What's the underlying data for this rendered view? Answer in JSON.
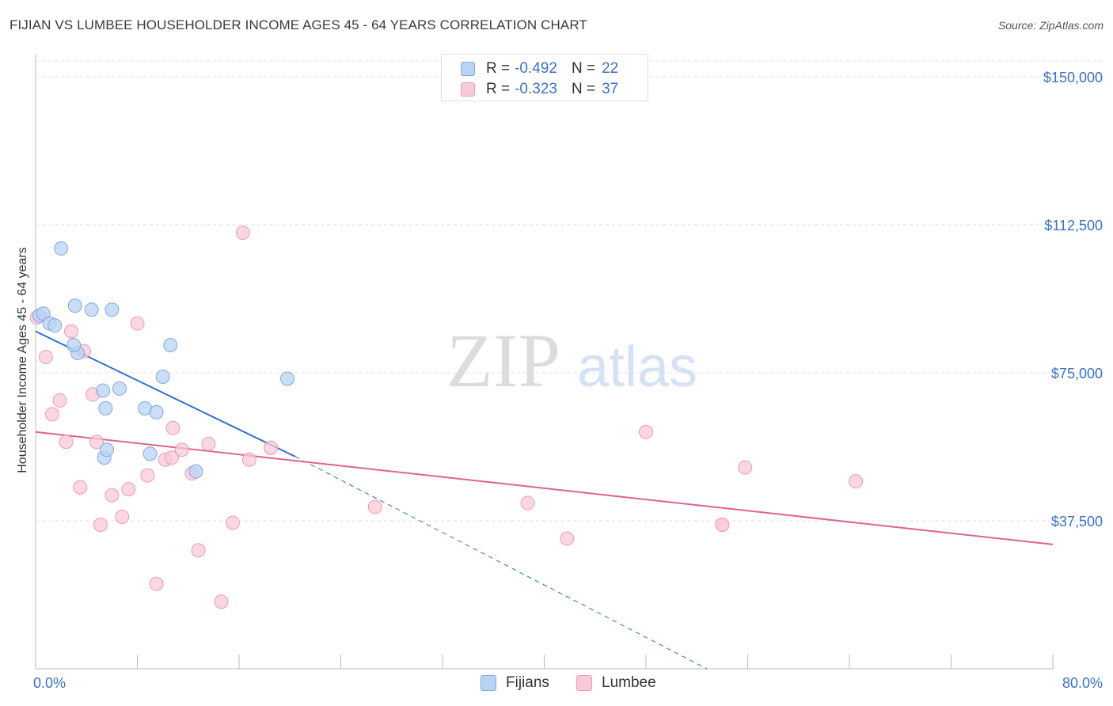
{
  "header": {
    "title": "FIJIAN VS LUMBEE HOUSEHOLDER INCOME AGES 45 - 64 YEARS CORRELATION CHART",
    "source": "Source: ZipAtlas.com"
  },
  "watermark": {
    "zip": "ZIP",
    "atlas": "atlas"
  },
  "legend_top": [
    {
      "r_label": "R =",
      "r_value": "-0.492",
      "n_label": "N =",
      "n_value": "22"
    },
    {
      "r_label": "R =",
      "r_value": "-0.323",
      "n_label": "N =",
      "n_value": "37"
    }
  ],
  "legend_bottom": {
    "fijians": "Fijians",
    "lumbee": "Lumbee"
  },
  "colors": {
    "fijians_fill": "#b9d3f3",
    "fijians_stroke": "#7ea9e0",
    "fijians_line": "#2f6fcf",
    "lumbee_fill": "#f9c9d7",
    "lumbee_stroke": "#ee9ab3",
    "lumbee_line": "#e0628d",
    "axis_text": "#3a72c8",
    "grid": "#e2e2e2"
  },
  "chart_data": {
    "type": "scatter",
    "title": "FIJIAN VS LUMBEE HOUSEHOLDER INCOME AGES 45 - 64 YEARS CORRELATION CHART",
    "xlabel": "",
    "ylabel": "Householder Income Ages 45 - 64 years",
    "xlim": [
      0,
      80
    ],
    "ylim": [
      0,
      155000
    ],
    "x_tick_labels": [
      {
        "value": 0,
        "label": "0.0%"
      },
      {
        "value": 80,
        "label": "80.0%"
      }
    ],
    "y_ticks": [
      {
        "value": 37500,
        "label": "$37,500"
      },
      {
        "value": 75000,
        "label": "$75,000"
      },
      {
        "value": 112500,
        "label": "$112,500"
      },
      {
        "value": 150000,
        "label": "$150,000"
      }
    ],
    "series": [
      {
        "name": "Fijians",
        "r": -0.492,
        "n": 22,
        "points": [
          {
            "x": 0.3,
            "y": 89500
          },
          {
            "x": 0.6,
            "y": 90000
          },
          {
            "x": 1.1,
            "y": 87500
          },
          {
            "x": 1.5,
            "y": 87000
          },
          {
            "x": 2.0,
            "y": 106500
          },
          {
            "x": 3.1,
            "y": 92000
          },
          {
            "x": 3.3,
            "y": 80000
          },
          {
            "x": 3.0,
            "y": 82000
          },
          {
            "x": 4.4,
            "y": 91000
          },
          {
            "x": 6.0,
            "y": 91000
          },
          {
            "x": 5.5,
            "y": 66000
          },
          {
            "x": 5.4,
            "y": 53500
          },
          {
            "x": 5.3,
            "y": 70500
          },
          {
            "x": 6.6,
            "y": 71000
          },
          {
            "x": 5.6,
            "y": 55500
          },
          {
            "x": 8.6,
            "y": 66000
          },
          {
            "x": 9.5,
            "y": 65000
          },
          {
            "x": 10.0,
            "y": 74000
          },
          {
            "x": 9.0,
            "y": 54500
          },
          {
            "x": 10.6,
            "y": 82000
          },
          {
            "x": 12.6,
            "y": 50000
          },
          {
            "x": 19.8,
            "y": 73500
          }
        ],
        "trend_solid": {
          "x0": 0,
          "y0": 85500,
          "x1": 20.4,
          "y1": 53800
        },
        "trend_dashed": {
          "x0": 20.4,
          "y0": 53800,
          "x1": 52.8,
          "y1": 0
        }
      },
      {
        "name": "Lumbee",
        "r": -0.323,
        "n": 37,
        "points": [
          {
            "x": 0.8,
            "y": 79000
          },
          {
            "x": 1.3,
            "y": 64500
          },
          {
            "x": 1.9,
            "y": 68000
          },
          {
            "x": 2.4,
            "y": 57500
          },
          {
            "x": 2.8,
            "y": 85500
          },
          {
            "x": 3.5,
            "y": 46000
          },
          {
            "x": 3.8,
            "y": 80500
          },
          {
            "x": 4.5,
            "y": 69500
          },
          {
            "x": 4.8,
            "y": 57500
          },
          {
            "x": 5.1,
            "y": 36500
          },
          {
            "x": 6.0,
            "y": 44000
          },
          {
            "x": 6.8,
            "y": 38500
          },
          {
            "x": 7.3,
            "y": 45500
          },
          {
            "x": 8.0,
            "y": 87500
          },
          {
            "x": 8.8,
            "y": 49000
          },
          {
            "x": 9.5,
            "y": 21500
          },
          {
            "x": 10.2,
            "y": 53000
          },
          {
            "x": 10.7,
            "y": 53500
          },
          {
            "x": 10.8,
            "y": 61000
          },
          {
            "x": 11.5,
            "y": 55500
          },
          {
            "x": 12.3,
            "y": 49500
          },
          {
            "x": 12.8,
            "y": 30000
          },
          {
            "x": 13.6,
            "y": 57000
          },
          {
            "x": 14.6,
            "y": 17000
          },
          {
            "x": 15.5,
            "y": 37000
          },
          {
            "x": 16.3,
            "y": 110500
          },
          {
            "x": 16.8,
            "y": 53000
          },
          {
            "x": 18.5,
            "y": 56000
          },
          {
            "x": 26.7,
            "y": 41000
          },
          {
            "x": 38.7,
            "y": 42000
          },
          {
            "x": 41.8,
            "y": 33000
          },
          {
            "x": 48.0,
            "y": 60000
          },
          {
            "x": 54.0,
            "y": 36500
          },
          {
            "x": 54.0,
            "y": 36500
          },
          {
            "x": 55.8,
            "y": 51000
          },
          {
            "x": 64.5,
            "y": 47500
          },
          {
            "x": 0.1,
            "y": 89000
          }
        ],
        "trend_solid": {
          "x0": 0,
          "y0": 60000,
          "x1": 80,
          "y1": 31500
        }
      }
    ]
  }
}
